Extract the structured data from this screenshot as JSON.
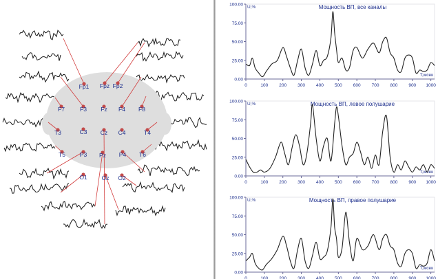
{
  "scalp": {
    "electrodes": [
      {
        "id": "Fp1",
        "label": "Fp1"
      },
      {
        "id": "Fpz",
        "label": "Fpz"
      },
      {
        "id": "Fp2",
        "label": "Fp2"
      },
      {
        "id": "F7",
        "label": "F7"
      },
      {
        "id": "F3",
        "label": "F3"
      },
      {
        "id": "Fz",
        "label": "Fz"
      },
      {
        "id": "F4",
        "label": "F4"
      },
      {
        "id": "F8",
        "label": "F8"
      },
      {
        "id": "T3",
        "label": "T3"
      },
      {
        "id": "C3",
        "label": "C3"
      },
      {
        "id": "Cz",
        "label": "Cz"
      },
      {
        "id": "C4",
        "label": "C4"
      },
      {
        "id": "T4",
        "label": "T4"
      },
      {
        "id": "T5",
        "label": "T5"
      },
      {
        "id": "P3",
        "label": "P3"
      },
      {
        "id": "Pz",
        "label": "Pz"
      },
      {
        "id": "P4",
        "label": "P4"
      },
      {
        "id": "T6",
        "label": "T6"
      },
      {
        "id": "O1",
        "label": "O1"
      },
      {
        "id": "Oz",
        "label": "Oz"
      },
      {
        "id": "O2",
        "label": "O2"
      }
    ],
    "colors": {
      "head": "#dedede",
      "electrode": "#c24a4a",
      "connector": "#d23b3b",
      "label": "#1c2e8c",
      "trace": "#1a1a1a"
    }
  },
  "chart_data": [
    {
      "type": "line",
      "title": "Мощность ВП, все каналы",
      "ylabel": "U,%",
      "xlabel": "T,мсек",
      "ylim": [
        0,
        100
      ],
      "xlim": [
        0,
        1020
      ],
      "yticks": [
        "0.00",
        "25.00",
        "50.00",
        "75.00",
        "100.00"
      ],
      "xticks": [
        "0",
        "100",
        "200",
        "300",
        "400",
        "500",
        "600",
        "700",
        "800",
        "900",
        "1000"
      ],
      "x": [
        0,
        20,
        35,
        50,
        70,
        90,
        110,
        140,
        170,
        200,
        220,
        240,
        260,
        280,
        300,
        320,
        340,
        360,
        380,
        400,
        420,
        440,
        460,
        470,
        480,
        490,
        500,
        520,
        540,
        560,
        580,
        600,
        630,
        660,
        690,
        720,
        740,
        760,
        780,
        800,
        820,
        840,
        860,
        880,
        900,
        920,
        940,
        960,
        980,
        1000,
        1020
      ],
      "values": [
        20,
        18,
        28,
        15,
        8,
        3,
        10,
        20,
        25,
        42,
        30,
        15,
        5,
        25,
        40,
        15,
        5,
        20,
        38,
        18,
        25,
        30,
        55,
        90,
        62,
        40,
        22,
        28,
        12,
        15,
        38,
        42,
        28,
        40,
        48,
        35,
        50,
        55,
        35,
        28,
        12,
        10,
        28,
        32,
        28,
        8,
        12,
        10,
        12,
        22,
        18
      ]
    },
    {
      "type": "line",
      "title": "Мощность ВП, левое полушарие",
      "ylabel": "U,%",
      "xlabel": "T,мсек",
      "ylim": [
        0,
        100
      ],
      "xlim": [
        0,
        1020
      ],
      "yticks": [
        "0.00",
        "25.00",
        "50.00",
        "75.00",
        "100.00"
      ],
      "xticks": [
        "0",
        "100",
        "200",
        "300",
        "400",
        "500",
        "600",
        "700",
        "800",
        "900",
        "1000"
      ],
      "x": [
        0,
        20,
        40,
        60,
        80,
        100,
        130,
        160,
        190,
        210,
        230,
        250,
        270,
        290,
        310,
        330,
        350,
        360,
        380,
        400,
        420,
        440,
        460,
        480,
        490,
        500,
        520,
        540,
        560,
        580,
        600,
        620,
        640,
        660,
        680,
        700,
        720,
        740,
        760,
        780,
        800,
        820,
        840,
        860,
        880,
        900,
        920,
        940,
        960,
        980,
        1000,
        1020
      ],
      "values": [
        22,
        12,
        5,
        5,
        8,
        5,
        10,
        25,
        45,
        30,
        15,
        38,
        55,
        40,
        15,
        30,
        70,
        95,
        50,
        20,
        40,
        50,
        20,
        70,
        92,
        80,
        40,
        15,
        25,
        30,
        45,
        32,
        15,
        25,
        10,
        28,
        15,
        60,
        80,
        25,
        5,
        15,
        8,
        20,
        12,
        5,
        12,
        8,
        15,
        5,
        15,
        10
      ]
    },
    {
      "type": "line",
      "title": "Мощность ВП, правое полушарие",
      "ylabel": "U,%",
      "xlabel": "T,мсек",
      "ylim": [
        0,
        100
      ],
      "xlim": [
        0,
        1020
      ],
      "yticks": [
        "0.00",
        "25.00",
        "50.00",
        "75.00",
        "100.00"
      ],
      "xticks": [
        "0",
        "100",
        "200",
        "300",
        "400",
        "500",
        "600",
        "700",
        "800",
        "900",
        "1000"
      ],
      "x": [
        0,
        20,
        35,
        50,
        70,
        90,
        110,
        140,
        170,
        200,
        220,
        240,
        260,
        280,
        300,
        320,
        340,
        360,
        380,
        400,
        420,
        440,
        460,
        470,
        480,
        490,
        500,
        520,
        540,
        560,
        580,
        600,
        630,
        660,
        690,
        720,
        740,
        760,
        780,
        800,
        820,
        840,
        860,
        880,
        900,
        920,
        940,
        960,
        980,
        1000,
        1020
      ],
      "values": [
        15,
        20,
        25,
        12,
        5,
        3,
        10,
        18,
        30,
        48,
        35,
        15,
        5,
        30,
        45,
        15,
        5,
        22,
        40,
        18,
        20,
        28,
        60,
        98,
        60,
        45,
        20,
        32,
        80,
        40,
        15,
        45,
        30,
        35,
        50,
        30,
        45,
        50,
        35,
        30,
        12,
        8,
        25,
        30,
        25,
        5,
        10,
        8,
        12,
        30,
        15
      ]
    }
  ]
}
